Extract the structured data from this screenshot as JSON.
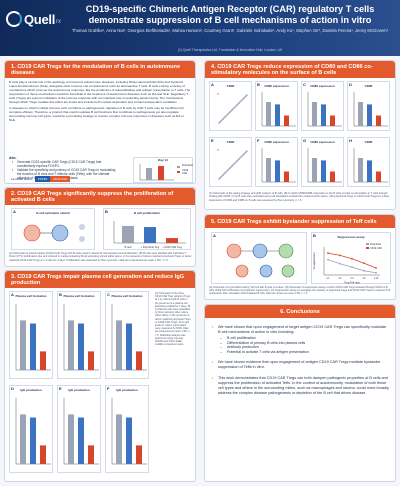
{
  "header": {
    "logo_text": "Quell",
    "logo_sub": "rx",
    "title": "CD19-specific Chimeric Antigen Receptor (CAR) regulatory T cells demonstrate suppression of B cell mechanisms of action in vitro",
    "authors": "Thomas Grahlke¹, Anna Nat¹, Georgios Eleftheriadis¹, Mahsa Hamoni¹, Courtney Grant¹, Gabriele Indriokaite¹, Andy Ko¹, Stephen Orr¹, Daniela Pereira¹, Jenny McGovern¹",
    "affiliation": "(1) Quell Therapeutics Ltd, Translation & Innovation Hub, London, UK"
  },
  "sections": {
    "s1": {
      "title": "1. CD19 CAR Tregs for the modulation of B cells in autoimmune diseases",
      "para1": "B cells play a central role in the aetiology of numerous autoimmune diseases, including Rheumatoid arthritis (RA) and Systemic Lupus Erythematosus (SLE), alongside other immune cell compartments such as autoreactive T cells. B cells employ a variety of mechanisms which promote the autoimmune response, like the production of autoantibodies and antigen presentation to T cells. The suppression of these mechanisms would be beneficial in the treatment of autoimmune diseases such as RA and SLE. Regulatory T cells (Tregs) are potent modulators of the immune response with an important role in restricting autoimmunity. The mechanisms through which Tregs mediate this effect are broad and include both contact-dependent and contact-independent modalities.",
      "para2": "In diseases in which multiple immune cells contribute to pathogenesis, depletion of B cells by CAR T cells may be insufficient for complete efficacy. Therefore, a product that could modulate B cell functions that contribute to pathogenesis yet also regulate surrounding immune cell types, would be a promising strategy to resolve complex immune responses in diseases such as RA or SLE.",
      "aim_label": "Aim:",
      "aims": [
        "Generate CD19-specific CAR Tregs (CD19 CAR Tregs) that constitutively express FOXP3.",
        "Validate the specificity and potency of CD19 CAR Tregs in modulating the function of B cells and T effector cells (Teffs), with the ultimate objective of restoring immune homeostasis."
      ],
      "diagram_label": "Lentiviral vector",
      "diagram_parts": [
        "FOXP3",
        "CD19 CAR"
      ],
      "chart_title": "Day 14",
      "legend": [
        "Polyclonal",
        "CD19 CAR"
      ]
    },
    "s2": {
      "title": "2. CD19 CAR Tregs significantly suppress the proliferation of activated B cells",
      "fig_a_title": "B cell activation stimuli",
      "fig_b_title": "B cell proliferation",
      "caption": "(A) Schematic of mixed readout (CD19 CAR Tregs with B cells) used to assess B cell activation and proliferation. (B) B cells were labelled with CellTrace™ Violet (CTV) proliferation dye and cultured in media containing B cell activating stimuli either alone, in the presence of donor-matched polyclonal Tregs or donor-matched CD19 CAR Tregs at 1:1 ratio for 4 days. Proliferation was assessed by flow cytometry; data are represented as mean ± SD, n = 5."
    },
    "s3": {
      "title": "3. CD19 CAR Tregs impair plasma cell generation and reduce IgG production",
      "panels": [
        "Plasma cell formation",
        "Plasma cell formation",
        "Plasma cell formation",
        "IgG production",
        "IgG production",
        "IgG production"
      ],
      "letters": [
        "A",
        "B",
        "C",
        "D",
        "E",
        "F"
      ],
      "side_caption": "(A) Schematic of the three CD19 CAR Treg variants (Tregs at 1:1) cultured with B cells in the presence of a plasma cell activating cocktail for 7 days. (B-C) Plasma cells were quantified by flow cytometry after culture either alone, in the presence of donor-matched polyclonal Tregs or CD19 CAR Tregs. (D-F) IgG levels in culture supernatant were measured by MSD. Data are presented as mean ± SD, n = 5. Statistical analysis was performed using one-way ANOVA and Holm-Sidak multiple comparison tests."
    },
    "s4": {
      "title": "4. CD19 CAR Tregs reduce expression of CD80 and CD86 co-stimulatory molecules on the surface of B cells",
      "letters": [
        "A",
        "B",
        "C",
        "D",
        "E",
        "F",
        "G",
        "H"
      ],
      "panels": [
        "CD80",
        "CD80 expression",
        "CD86 expression",
        "CD86",
        "CD80",
        "CD80 expression",
        "CD86 expression",
        "CD86"
      ],
      "caption": "(A) Schematic of the gating strategy and (left) markers of B cells. (B) In which CD80/CD86 molecules on the B cells provide co-stimulation to T cells through binding with CD28. (C-H) B cells were activated using cell stimulation cocktail then cultured either alone, with polyclonal Tregs or CD19 CAR Tregs for 4 days. Expression of CD80 and CD86 on B cells was assessed by flow cytometry, n = 5."
    },
    "s5": {
      "title": "5. CD19 CAR Tregs exhibit bystander suppression of Teff cells",
      "fig_a": "Schematic",
      "fig_b_title": "Suppression assay",
      "xlabel": "Treg:Teff ratio",
      "ylabel": "% suppression",
      "legend": [
        "Polyclonal",
        "CD19 CAR"
      ],
      "caption": "(A) Schematic of a (proinflammatory) Teff cell with B cells co-culture. (B) Schematic of suppression assay in which CD19 CAR Tregs activated through CD19 on B cells inhibit Teff proliferation via bystander suppression. (C) Suppression assay to investigate the capacity of polyclonal Tregs and CD19 CAR Tregs to suppress Teff proliferation after stimulation with irradiated B cells. Data are shown as mean ± SD, n = 3."
    },
    "s6": {
      "title": "6. Conclusions",
      "item1": "We have shown that upon engagement of target antigen CD19 CAR Tregs can specifically modulate B cell mechanisms of action in vitro including:",
      "subitems": [
        "B cell proliferation",
        "Differentiation of primary B cells into plasma cells",
        "Antibody production",
        "Potential to activate T cells via antigen presentation"
      ],
      "item2": "We have shown evidence that upon engagement of antigen CD19 CAR Tregs mediate bystander suppression of Teffs in vitro.",
      "item3": "This work demonstrates that CD19 CAR Tregs can both dampen pathogenic properties of B cells and suppress the proliferation of activated Teffs. In the context of autoimmunity, modulation of both these cell types and others in the surrounding milieu, such as macrophages and stroma, could more broadly address the complex disease pathogenesis or depletion of the B cell that drives disease."
    }
  },
  "chart_data": [
    {
      "type": "bar",
      "title": "B cell proliferation",
      "categories": [
        "B cells",
        "+ Polyclonal Treg",
        "+ CD19 CAR Treg"
      ],
      "values": [
        62,
        58,
        18
      ],
      "ylim": [
        0,
        80
      ]
    },
    {
      "type": "line",
      "title": "Suppression assay",
      "x": [
        "1:1",
        "1:2",
        "1:4",
        "1:8",
        "1:16"
      ],
      "series": [
        {
          "name": "Polyclonal",
          "values": [
            55,
            40,
            28,
            15,
            8
          ]
        },
        {
          "name": "CD19 CAR",
          "values": [
            78,
            70,
            58,
            42,
            25
          ]
        }
      ],
      "xlabel": "Treg:Teff ratio",
      "ylabel": "% suppression",
      "ylim": [
        0,
        100
      ]
    }
  ],
  "colors": {
    "header_bg": "#0f2a5a",
    "section_head": "#e35a2c",
    "accent_blue": "#1f5fa8",
    "bar_grey": "#9aa4b5",
    "bar_red": "#d9452b",
    "bar_blue": "#3b73c2"
  }
}
